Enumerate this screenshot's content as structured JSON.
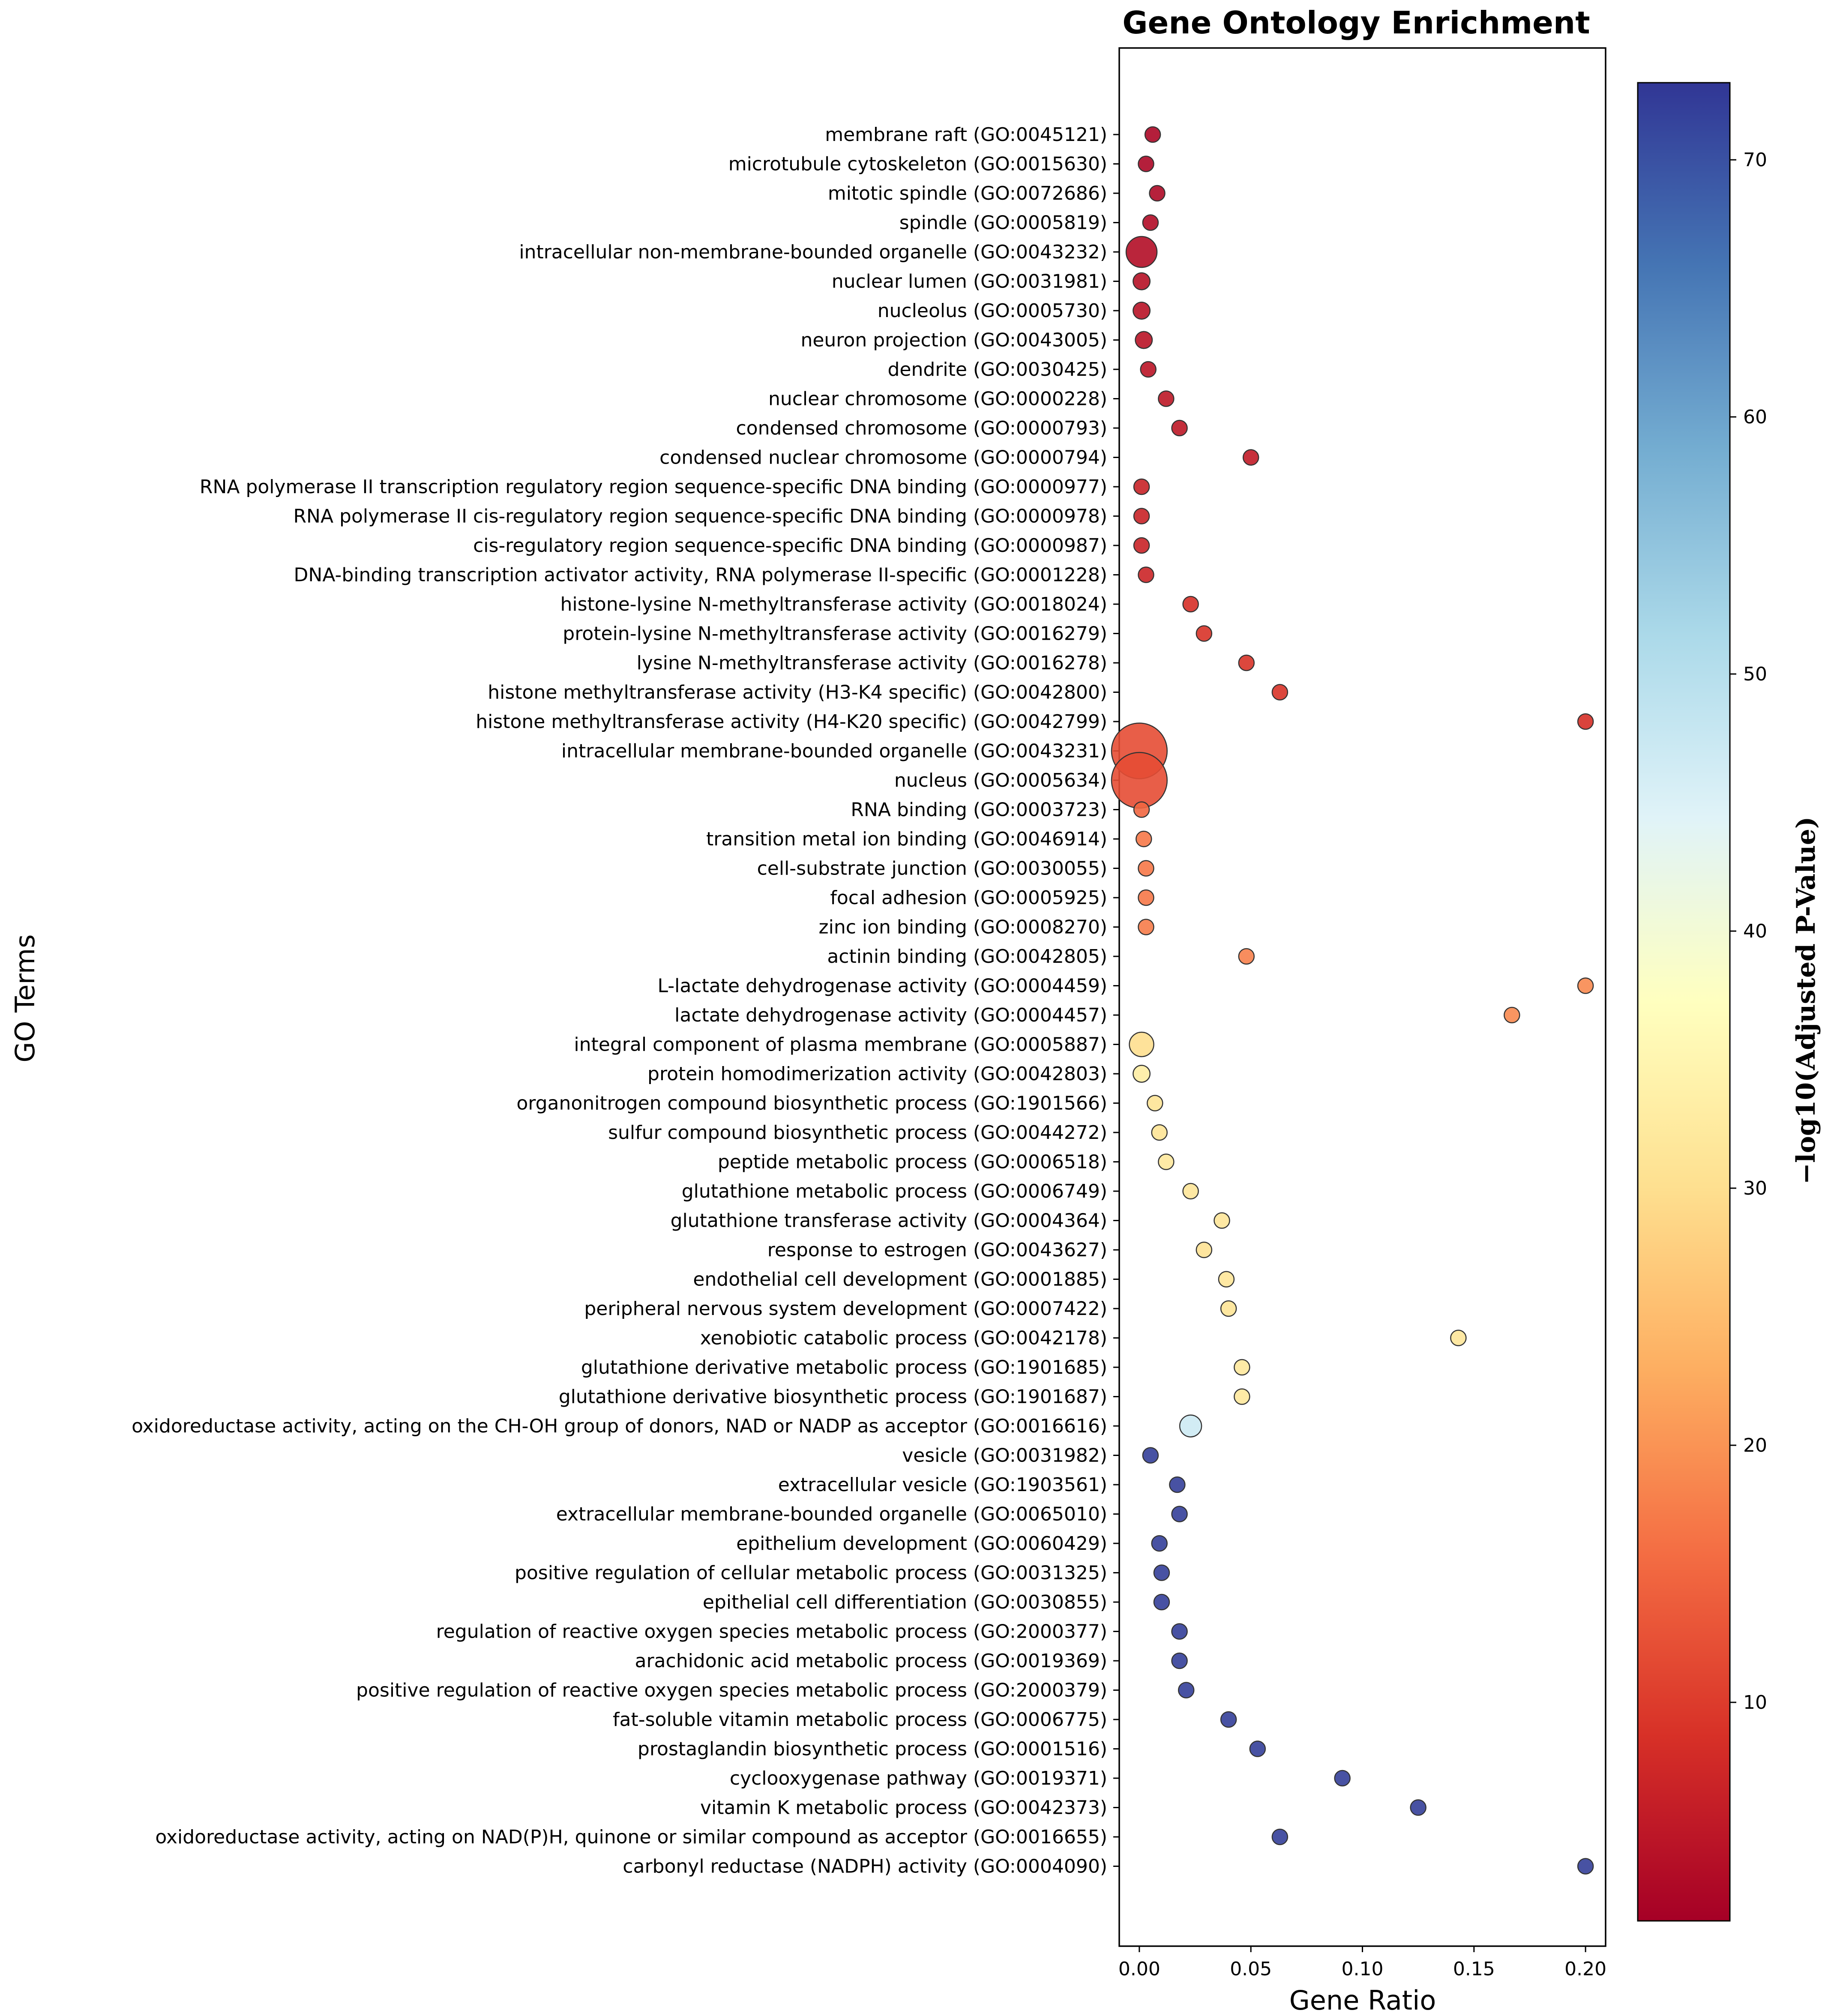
{
  "chart_data": {
    "type": "scatter",
    "title": "Gene Ontology Enrichment",
    "xlabel": "Gene Ratio",
    "ylabel": "GO Terms",
    "xlim": [
      -0.009,
      0.209
    ],
    "xticks": [
      0.0,
      0.05,
      0.1,
      0.15,
      0.2
    ],
    "xtick_labels": [
      "0.00",
      "0.05",
      "0.10",
      "0.15",
      "0.20"
    ],
    "colorbar": {
      "label": "−log10(Adjusted P-Value)",
      "range": [
        1.5,
        73
      ],
      "ticks": [
        10,
        20,
        30,
        40,
        50,
        60,
        70
      ],
      "tick_labels": [
        "10",
        "20",
        "30",
        "40",
        "50",
        "60",
        "70"
      ],
      "colormap": "RdYlBu"
    },
    "terms": [
      {
        "label": "membrane raft (GO:0045121)",
        "x": 0.006,
        "p": 2.5,
        "size": 1
      },
      {
        "label": "microtubule cytoskeleton (GO:0015630)",
        "x": 0.003,
        "p": 2.5,
        "size": 1
      },
      {
        "label": "mitotic spindle (GO:0072686)",
        "x": 0.008,
        "p": 2.8,
        "size": 1
      },
      {
        "label": "spindle (GO:0005819)",
        "x": 0.005,
        "p": 3.2,
        "size": 1
      },
      {
        "label": "intracellular non-membrane-bounded organelle (GO:0043232)",
        "x": 0.001,
        "p": 3.5,
        "size": 4
      },
      {
        "label": "nuclear lumen (GO:0031981)",
        "x": 0.001,
        "p": 4.0,
        "size": 1.2
      },
      {
        "label": "nucleolus (GO:0005730)",
        "x": 0.001,
        "p": 4.2,
        "size": 1.2
      },
      {
        "label": "neuron projection (GO:0043005)",
        "x": 0.002,
        "p": 4.3,
        "size": 1.2
      },
      {
        "label": "dendrite (GO:0030425)",
        "x": 0.004,
        "p": 4.5,
        "size": 1
      },
      {
        "label": "nuclear chromosome (GO:0000228)",
        "x": 0.012,
        "p": 5.0,
        "size": 1
      },
      {
        "label": "condensed chromosome (GO:0000793)",
        "x": 0.018,
        "p": 5.0,
        "size": 1
      },
      {
        "label": "condensed nuclear chromosome (GO:0000794)",
        "x": 0.05,
        "p": 5.5,
        "size": 1
      },
      {
        "label": "RNA polymerase II transcription regulatory region sequence-specific DNA binding (GO:0000977)",
        "x": 0.001,
        "p": 6.5,
        "size": 1
      },
      {
        "label": "RNA polymerase II cis-regulatory region sequence-specific DNA binding (GO:0000978)",
        "x": 0.001,
        "p": 6.5,
        "size": 1
      },
      {
        "label": "cis-regulatory region sequence-specific DNA binding (GO:0000987)",
        "x": 0.001,
        "p": 6.6,
        "size": 1
      },
      {
        "label": "DNA-binding transcription activator activity, RNA polymerase II-specific (GO:0001228)",
        "x": 0.003,
        "p": 7.0,
        "size": 1
      },
      {
        "label": "histone-lysine N-methyltransferase activity (GO:0018024)",
        "x": 0.023,
        "p": 8.5,
        "size": 1
      },
      {
        "label": "protein-lysine N-methyltransferase activity (GO:0016279)",
        "x": 0.029,
        "p": 9.0,
        "size": 1
      },
      {
        "label": "lysine N-methyltransferase activity (GO:0016278)",
        "x": 0.048,
        "p": 9.0,
        "size": 1
      },
      {
        "label": "histone methyltransferase activity (H3-K4 specific) (GO:0042800)",
        "x": 0.063,
        "p": 9.0,
        "size": 1
      },
      {
        "label": "histone methyltransferase activity (H4-K20 specific) (GO:0042799)",
        "x": 0.2,
        "p": 8.5,
        "size": 1
      },
      {
        "label": "intracellular membrane-bounded organelle (GO:0043231)",
        "x": 0.0,
        "p": 12.0,
        "size": 13
      },
      {
        "label": "nucleus (GO:0005634)",
        "x": 0.0,
        "p": 12.0,
        "size": 13
      },
      {
        "label": "RNA binding (GO:0003723)",
        "x": 0.001,
        "p": 15.0,
        "size": 1
      },
      {
        "label": "transition metal ion binding (GO:0046914)",
        "x": 0.002,
        "p": 17.0,
        "size": 1
      },
      {
        "label": "cell-substrate junction (GO:0030055)",
        "x": 0.003,
        "p": 17.0,
        "size": 1
      },
      {
        "label": "focal adhesion (GO:0005925)",
        "x": 0.003,
        "p": 17.0,
        "size": 1
      },
      {
        "label": "zinc ion binding (GO:0008270)",
        "x": 0.003,
        "p": 17.5,
        "size": 1
      },
      {
        "label": "actinin binding (GO:0042805)",
        "x": 0.048,
        "p": 18.0,
        "size": 1
      },
      {
        "label": "L-lactate dehydrogenase activity (GO:0004459)",
        "x": 0.2,
        "p": 19.0,
        "size": 1
      },
      {
        "label": "lactate dehydrogenase activity (GO:0004457)",
        "x": 0.167,
        "p": 19.0,
        "size": 1
      },
      {
        "label": "integral component of plasma membrane (GO:0005887)",
        "x": 0.001,
        "p": 30.0,
        "size": 2.5
      },
      {
        "label": "protein homodimerization activity (GO:0042803)",
        "x": 0.001,
        "p": 33.0,
        "size": 1.2
      },
      {
        "label": "organonitrogen compound biosynthetic process (GO:1901566)",
        "x": 0.007,
        "p": 31.0,
        "size": 1
      },
      {
        "label": "sulfur compound biosynthetic process (GO:0044272)",
        "x": 0.009,
        "p": 31.0,
        "size": 1
      },
      {
        "label": "peptide metabolic process (GO:0006518)",
        "x": 0.012,
        "p": 32.0,
        "size": 1
      },
      {
        "label": "glutathione metabolic process (GO:0006749)",
        "x": 0.023,
        "p": 31.5,
        "size": 1
      },
      {
        "label": "glutathione transferase activity (GO:0004364)",
        "x": 0.037,
        "p": 31.5,
        "size": 1
      },
      {
        "label": "response to estrogen (GO:0043627)",
        "x": 0.029,
        "p": 30.5,
        "size": 1
      },
      {
        "label": "endothelial cell development (GO:0001885)",
        "x": 0.039,
        "p": 31.5,
        "size": 1
      },
      {
        "label": "peripheral nervous system development (GO:0007422)",
        "x": 0.04,
        "p": 31.0,
        "size": 1
      },
      {
        "label": "xenobiotic catabolic process (GO:0042178)",
        "x": 0.143,
        "p": 31.5,
        "size": 1
      },
      {
        "label": "glutathione derivative metabolic process (GO:1901685)",
        "x": 0.046,
        "p": 32.0,
        "size": 1
      },
      {
        "label": "glutathione derivative biosynthetic process (GO:1901687)",
        "x": 0.046,
        "p": 32.0,
        "size": 1
      },
      {
        "label": "oxidoreductase activity, acting on the CH-OH group of donors, NAD or NADP as acceptor (GO:0016616)",
        "x": 0.023,
        "p": 47.0,
        "size": 2
      },
      {
        "label": "vesicle (GO:0031982)",
        "x": 0.005,
        "p": 72.0,
        "size": 1
      },
      {
        "label": "extracellular vesicle (GO:1903561)",
        "x": 0.017,
        "p": 72.0,
        "size": 1
      },
      {
        "label": "extracellular membrane-bounded organelle (GO:0065010)",
        "x": 0.018,
        "p": 72.0,
        "size": 1
      },
      {
        "label": "epithelium development (GO:0060429)",
        "x": 0.009,
        "p": 72.0,
        "size": 1
      },
      {
        "label": "positive regulation of cellular metabolic process (GO:0031325)",
        "x": 0.01,
        "p": 72.0,
        "size": 1
      },
      {
        "label": "epithelial cell differentiation (GO:0030855)",
        "x": 0.01,
        "p": 72.0,
        "size": 1
      },
      {
        "label": "regulation of reactive oxygen species metabolic process (GO:2000377)",
        "x": 0.018,
        "p": 72.0,
        "size": 1
      },
      {
        "label": "arachidonic acid metabolic process (GO:0019369)",
        "x": 0.018,
        "p": 72.0,
        "size": 1
      },
      {
        "label": "positive regulation of reactive oxygen species metabolic process (GO:2000379)",
        "x": 0.021,
        "p": 72.0,
        "size": 1
      },
      {
        "label": "fat-soluble vitamin metabolic process (GO:0006775)",
        "x": 0.04,
        "p": 72.0,
        "size": 1
      },
      {
        "label": "prostaglandin biosynthetic process (GO:0001516)",
        "x": 0.053,
        "p": 72.0,
        "size": 1
      },
      {
        "label": "cyclooxygenase pathway (GO:0019371)",
        "x": 0.091,
        "p": 72.0,
        "size": 1
      },
      {
        "label": "vitamin K metabolic process (GO:0042373)",
        "x": 0.125,
        "p": 72.0,
        "size": 1
      },
      {
        "label": "oxidoreductase activity, acting on NAD(P)H, quinone or similar compound as acceptor (GO:0016655)",
        "x": 0.063,
        "p": 72.0,
        "size": 1
      },
      {
        "label": "carbonyl reductase (NADPH) activity (GO:0004090)",
        "x": 0.2,
        "p": 72.0,
        "size": 1
      }
    ]
  }
}
